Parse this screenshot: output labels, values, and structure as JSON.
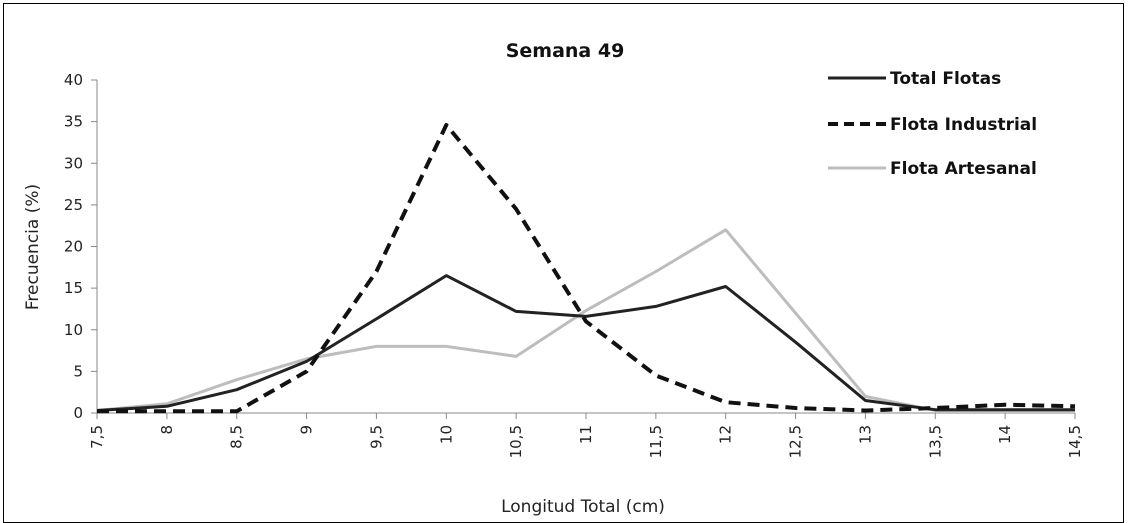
{
  "chart_data": {
    "type": "line",
    "title": "Semana 49",
    "xlabel": "Longitud Total (cm)",
    "ylabel": "Frecuencia  (%)",
    "ylim": [
      0,
      40
    ],
    "yticks": [
      "0",
      "5",
      "10",
      "15",
      "20",
      "25",
      "30",
      "35",
      "40"
    ],
    "categories": [
      "7,5",
      "8",
      "8,5",
      "9",
      "9,5",
      "10",
      "10,5",
      "11",
      "11,5",
      "12",
      "12,5",
      "13",
      "13,5",
      "14",
      "14,5"
    ],
    "grid": false,
    "legend_position": "top-right",
    "series": [
      {
        "name": "Total Flotas",
        "color": "#222222",
        "dash": "solid",
        "values": [
          0.3,
          0.8,
          2.8,
          6.2,
          11.3,
          16.5,
          12.2,
          11.6,
          12.8,
          15.2,
          8.5,
          1.5,
          0.4,
          0.4,
          0.4
        ]
      },
      {
        "name": "Flota Industrial",
        "color": "#111111",
        "dash": "dashed",
        "values": [
          0.2,
          0.2,
          0.2,
          5.0,
          17.0,
          34.6,
          24.5,
          11.0,
          4.5,
          1.3,
          0.6,
          0.3,
          0.6,
          1.0,
          0.8
        ]
      },
      {
        "name": "Flota Artesanal",
        "color": "#bdbdbd",
        "dash": "solid",
        "values": [
          0.3,
          1.1,
          4.0,
          6.5,
          8.0,
          8.0,
          6.8,
          12.3,
          17.0,
          22.0,
          12.0,
          2.0,
          0.3,
          0.3,
          0.3
        ]
      }
    ]
  }
}
